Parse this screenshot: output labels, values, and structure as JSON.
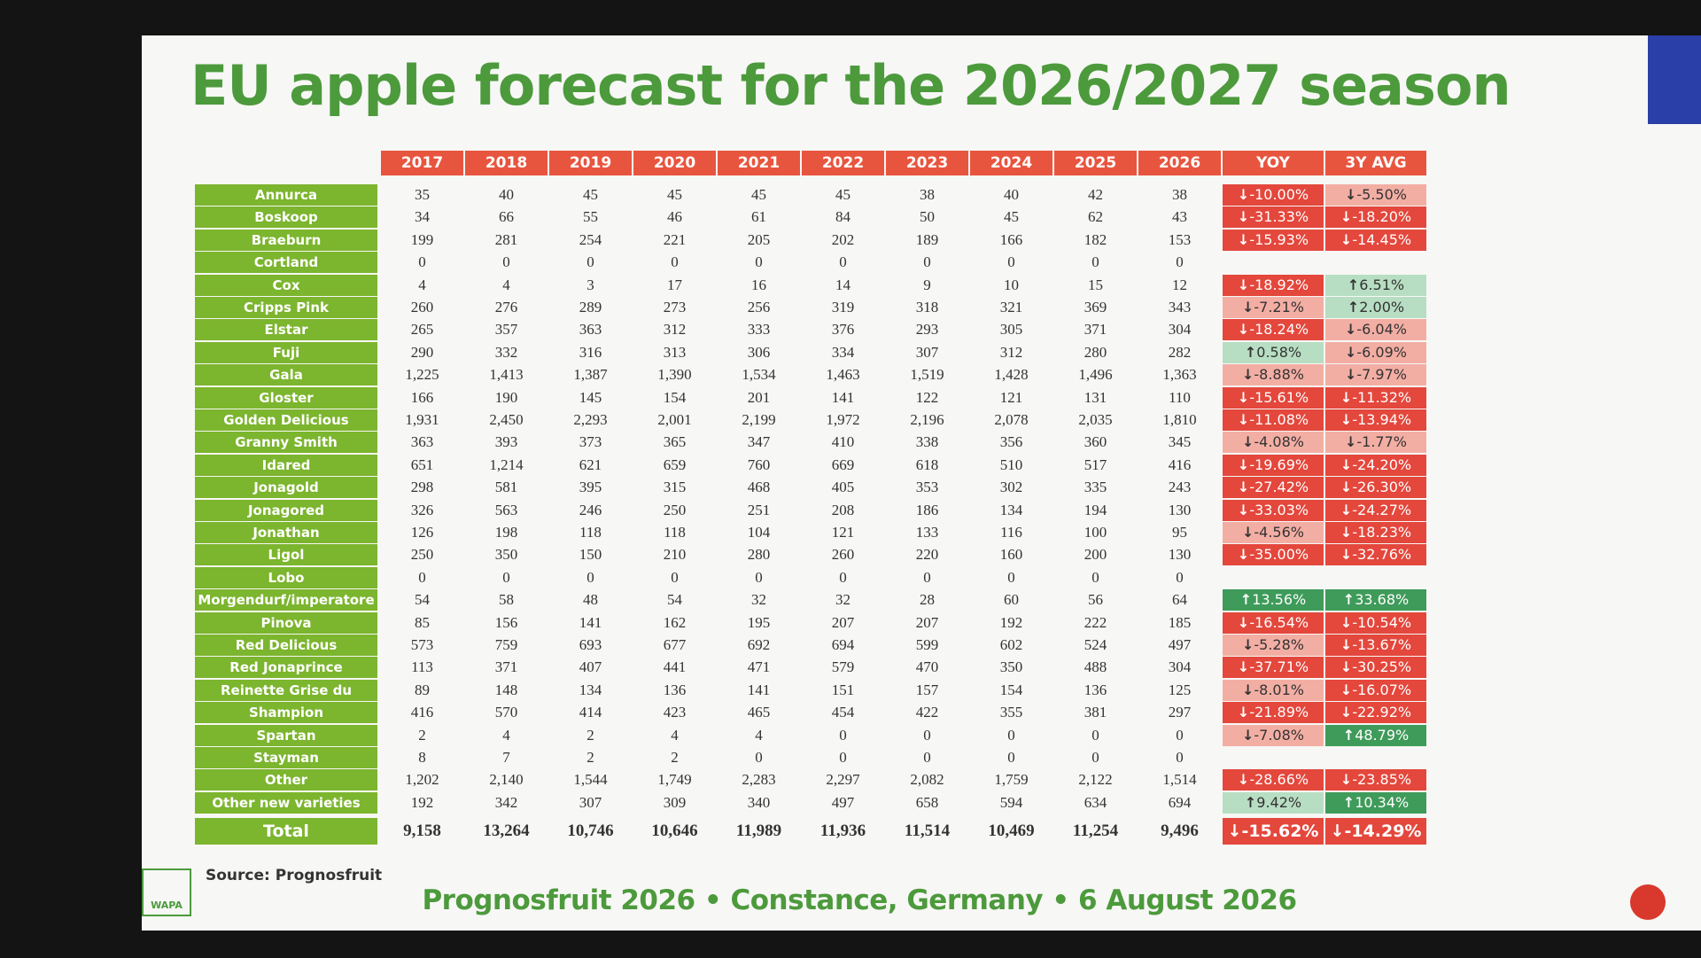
{
  "title": "EU apple forecast for the 2026/2027 season",
  "table": {
    "columns": [
      "2017",
      "2018",
      "2019",
      "2020",
      "2021",
      "2022",
      "2023",
      "2024",
      "2025",
      "2026",
      "YOY",
      "3Y AVG"
    ],
    "rows": [
      {
        "variety": "Annurca",
        "values": [
          "35",
          "40",
          "45",
          "45",
          "45",
          "45",
          "38",
          "40",
          "42",
          "38"
        ],
        "yoy": "-10.00%",
        "avg3y": "-5.50%"
      },
      {
        "variety": "Boskoop",
        "values": [
          "34",
          "66",
          "55",
          "46",
          "61",
          "84",
          "50",
          "45",
          "62",
          "43"
        ],
        "yoy": "-31.33%",
        "avg3y": "-18.20%"
      },
      {
        "variety": "Braeburn",
        "values": [
          "199",
          "281",
          "254",
          "221",
          "205",
          "202",
          "189",
          "166",
          "182",
          "153"
        ],
        "yoy": "-15.93%",
        "avg3y": "-14.45%"
      },
      {
        "variety": "Cortland",
        "values": [
          "0",
          "0",
          "0",
          "0",
          "0",
          "0",
          "0",
          "0",
          "0",
          "0"
        ]
      },
      {
        "variety": "Cox",
        "values": [
          "4",
          "4",
          "3",
          "17",
          "16",
          "14",
          "9",
          "10",
          "15",
          "12"
        ],
        "yoy": "-18.92%",
        "avg3y": "6.51%"
      },
      {
        "variety": "Cripps Pink",
        "values": [
          "260",
          "276",
          "289",
          "273",
          "256",
          "319",
          "318",
          "321",
          "369",
          "343"
        ],
        "yoy": "-7.21%",
        "avg3y": "2.00%"
      },
      {
        "variety": "Elstar",
        "values": [
          "265",
          "357",
          "363",
          "312",
          "333",
          "376",
          "293",
          "305",
          "371",
          "304"
        ],
        "yoy": "-18.24%",
        "avg3y": "-6.04%"
      },
      {
        "variety": "Fuji",
        "values": [
          "290",
          "332",
          "316",
          "313",
          "306",
          "334",
          "307",
          "312",
          "280",
          "282"
        ],
        "yoy": "0.58%",
        "avg3y": "-6.09%"
      },
      {
        "variety": "Gala",
        "values": [
          "1,225",
          "1,413",
          "1,387",
          "1,390",
          "1,534",
          "1,463",
          "1,519",
          "1,428",
          "1,496",
          "1,363"
        ],
        "yoy": "-8.88%",
        "avg3y": "-7.97%"
      },
      {
        "variety": "Gloster",
        "values": [
          "166",
          "190",
          "145",
          "154",
          "201",
          "141",
          "122",
          "121",
          "131",
          "110"
        ],
        "yoy": "-15.61%",
        "avg3y": "-11.32%"
      },
      {
        "variety": "Golden Delicious",
        "values": [
          "1,931",
          "2,450",
          "2,293",
          "2,001",
          "2,199",
          "1,972",
          "2,196",
          "2,078",
          "2,035",
          "1,810"
        ],
        "yoy": "-11.08%",
        "avg3y": "-13.94%"
      },
      {
        "variety": "Granny Smith",
        "values": [
          "363",
          "393",
          "373",
          "365",
          "347",
          "410",
          "338",
          "356",
          "360",
          "345"
        ],
        "yoy": "-4.08%",
        "avg3y": "-1.77%"
      },
      {
        "variety": "Idared",
        "values": [
          "651",
          "1,214",
          "621",
          "659",
          "760",
          "669",
          "618",
          "510",
          "517",
          "416"
        ],
        "yoy": "-19.69%",
        "avg3y": "-24.20%"
      },
      {
        "variety": "Jonagold",
        "values": [
          "298",
          "581",
          "395",
          "315",
          "468",
          "405",
          "353",
          "302",
          "335",
          "243"
        ],
        "yoy": "-27.42%",
        "avg3y": "-26.30%"
      },
      {
        "variety": "Jonagored",
        "values": [
          "326",
          "563",
          "246",
          "250",
          "251",
          "208",
          "186",
          "134",
          "194",
          "130"
        ],
        "yoy": "-33.03%",
        "avg3y": "-24.27%"
      },
      {
        "variety": "Jonathan",
        "values": [
          "126",
          "198",
          "118",
          "118",
          "104",
          "121",
          "133",
          "116",
          "100",
          "95"
        ],
        "yoy": "-4.56%",
        "avg3y": "-18.23%"
      },
      {
        "variety": "Ligol",
        "values": [
          "250",
          "350",
          "150",
          "210",
          "280",
          "260",
          "220",
          "160",
          "200",
          "130"
        ],
        "yoy": "-35.00%",
        "avg3y": "-32.76%"
      },
      {
        "variety": "Lobo",
        "values": [
          "0",
          "0",
          "0",
          "0",
          "0",
          "0",
          "0",
          "0",
          "0",
          "0"
        ]
      },
      {
        "variety": "Morgendurf/imperatore",
        "values": [
          "54",
          "58",
          "48",
          "54",
          "32",
          "32",
          "28",
          "60",
          "56",
          "64"
        ],
        "yoy": "13.56%",
        "avg3y": "33.68%"
      },
      {
        "variety": "Pinova",
        "values": [
          "85",
          "156",
          "141",
          "162",
          "195",
          "207",
          "207",
          "192",
          "222",
          "185"
        ],
        "yoy": "-16.54%",
        "avg3y": "-10.54%"
      },
      {
        "variety": "Red Delicious",
        "values": [
          "573",
          "759",
          "693",
          "677",
          "692",
          "694",
          "599",
          "602",
          "524",
          "497"
        ],
        "yoy": "-5.28%",
        "avg3y": "-13.67%"
      },
      {
        "variety": "Red Jonaprince",
        "values": [
          "113",
          "371",
          "407",
          "441",
          "471",
          "579",
          "470",
          "350",
          "488",
          "304"
        ],
        "yoy": "-37.71%",
        "avg3y": "-30.25%"
      },
      {
        "variety": "Reinette Grise du Canada",
        "values": [
          "89",
          "148",
          "134",
          "136",
          "141",
          "151",
          "157",
          "154",
          "136",
          "125"
        ],
        "yoy": "-8.01%",
        "avg3y": "-16.07%"
      },
      {
        "variety": "Shampion",
        "values": [
          "416",
          "570",
          "414",
          "423",
          "465",
          "454",
          "422",
          "355",
          "381",
          "297"
        ],
        "yoy": "-21.89%",
        "avg3y": "-22.92%"
      },
      {
        "variety": "Spartan",
        "values": [
          "2",
          "4",
          "2",
          "4",
          "4",
          "0",
          "0",
          "0",
          "0",
          "0"
        ],
        "yoy": "-7.08%",
        "avg3y": "48.79%"
      },
      {
        "variety": "Stayman",
        "values": [
          "8",
          "7",
          "2",
          "2",
          "0",
          "0",
          "0",
          "0",
          "0",
          "0"
        ]
      },
      {
        "variety": "Other",
        "values": [
          "1,202",
          "2,140",
          "1,544",
          "1,749",
          "2,283",
          "2,297",
          "2,082",
          "1,759",
          "2,122",
          "1,514"
        ],
        "yoy": "-28.66%",
        "avg3y": "-23.85%"
      },
      {
        "variety": "Other new varieties",
        "values": [
          "192",
          "342",
          "307",
          "309",
          "340",
          "497",
          "658",
          "594",
          "634",
          "694"
        ],
        "yoy": "9.42%",
        "avg3y": "10.34%"
      }
    ],
    "total": {
      "variety": "Total",
      "values": [
        "9,158",
        "13,264",
        "10,746",
        "10,646",
        "11,989",
        "11,936",
        "11,514",
        "10,469",
        "11,254",
        "9,496"
      ],
      "yoy": "-15.62%",
      "avg3y": "-14.29%"
    }
  },
  "source": "Source: Prognosfruit",
  "footer": "Prognosfruit 2026 • Constance, Germany • 6 August 2026",
  "logo": "WAPA"
}
